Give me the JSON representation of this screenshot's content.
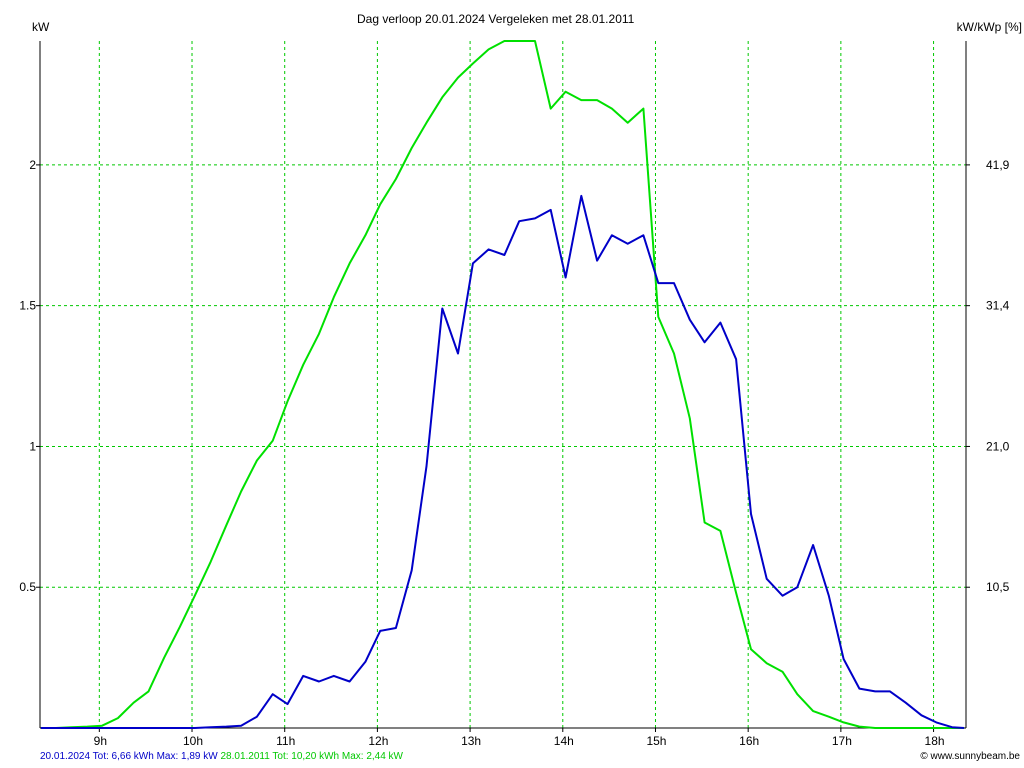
{
  "title": "Dag  verloop 20.01.2024   Vergeleken met 28.01.2011",
  "left_axis_unit": "kW",
  "right_axis_unit": "kW/kWp [%]",
  "footer": {
    "series1_summary": "20.01.2024 Tot: 6,66 kWh Max: 1,89 kW",
    "series2_summary": "28.01.2011 Tot: 10,20 kWh Max: 2,44 kW",
    "credit": "© www.sunnybeam.be"
  },
  "colors": {
    "series1": "#0000c8",
    "series2": "#00e000",
    "grid": "#00c800",
    "axis": "#000000"
  },
  "chart_data": {
    "type": "line",
    "grid": true,
    "xlim": [
      8.36,
      18.35
    ],
    "ylim": [
      0,
      2.44
    ],
    "x_ticks": [
      9,
      10,
      11,
      12,
      13,
      14,
      15,
      16,
      17,
      18
    ],
    "x_tick_labels": [
      "9h",
      "10h",
      "11h",
      "12h",
      "13h",
      "14h",
      "15h",
      "16h",
      "17h",
      "18h"
    ],
    "y_ticks": [
      0.5,
      1,
      1.5,
      2
    ],
    "y_tick_labels": [
      "0.5",
      "1",
      "1.5",
      "2"
    ],
    "y2_tick_labels": [
      "10,5",
      "21,0",
      "31,4",
      "41,9"
    ],
    "series": [
      {
        "name": "20.01.2024",
        "color": "#0000c8",
        "x": [
          8.37,
          8.53,
          8.7,
          8.87,
          9.03,
          9.2,
          9.37,
          9.53,
          9.7,
          9.87,
          10.03,
          10.2,
          10.37,
          10.53,
          10.7,
          10.87,
          11.03,
          11.2,
          11.37,
          11.53,
          11.7,
          11.87,
          12.03,
          12.2,
          12.37,
          12.53,
          12.7,
          12.87,
          13.03,
          13.2,
          13.37,
          13.53,
          13.7,
          13.87,
          14.03,
          14.2,
          14.37,
          14.53,
          14.7,
          14.87,
          15.03,
          15.2,
          15.37,
          15.53,
          15.7,
          15.87,
          16.03,
          16.2,
          16.37,
          16.53,
          16.7,
          16.87,
          17.03,
          17.2,
          17.37,
          17.53,
          17.7,
          17.87,
          18.03,
          18.2,
          18.33
        ],
        "values": [
          0,
          0,
          0,
          0,
          0,
          0,
          0,
          0,
          0,
          0,
          0,
          0.003,
          0.005,
          0.008,
          0.04,
          0.12,
          0.085,
          0.185,
          0.165,
          0.185,
          0.165,
          0.235,
          0.345,
          0.355,
          0.56,
          0.93,
          1.49,
          1.33,
          1.65,
          1.7,
          1.68,
          1.8,
          1.81,
          1.84,
          1.6,
          1.89,
          1.66,
          1.75,
          1.72,
          1.75,
          1.58,
          1.58,
          1.45,
          1.37,
          1.44,
          1.31,
          0.76,
          0.53,
          0.47,
          0.5,
          0.65,
          0.47,
          0.245,
          0.14,
          0.13,
          0.13,
          0.09,
          0.045,
          0.02,
          0.003,
          0
        ]
      },
      {
        "name": "28.01.2011",
        "color": "#00e000",
        "x": [
          8.37,
          8.53,
          8.7,
          8.87,
          9.03,
          9.2,
          9.37,
          9.53,
          9.7,
          9.87,
          10.03,
          10.2,
          10.37,
          10.53,
          10.7,
          10.87,
          11.03,
          11.2,
          11.37,
          11.53,
          11.7,
          11.87,
          12.03,
          12.2,
          12.37,
          12.53,
          12.7,
          12.87,
          13.03,
          13.2,
          13.37,
          13.53,
          13.7,
          13.87,
          14.03,
          14.2,
          14.37,
          14.53,
          14.7,
          14.87,
          15.03,
          15.2,
          15.37,
          15.53,
          15.7,
          15.87,
          16.03,
          16.2,
          16.37,
          16.53,
          16.7,
          16.87,
          17.03,
          17.2,
          17.37,
          17.53,
          17.7,
          17.87,
          18.03,
          18.2,
          18.33
        ],
        "values": [
          0,
          0,
          0.003,
          0.005,
          0.008,
          0.035,
          0.09,
          0.13,
          0.25,
          0.36,
          0.47,
          0.59,
          0.72,
          0.84,
          0.95,
          1.02,
          1.16,
          1.29,
          1.4,
          1.53,
          1.65,
          1.75,
          1.86,
          1.95,
          2.06,
          2.15,
          2.24,
          2.31,
          2.36,
          2.41,
          2.44,
          2.44,
          2.44,
          2.2,
          2.26,
          2.23,
          2.23,
          2.2,
          2.15,
          2.2,
          1.46,
          1.33,
          1.1,
          0.73,
          0.7,
          0.48,
          0.28,
          0.23,
          0.2,
          0.12,
          0.06,
          0.04,
          0.02,
          0.005,
          0,
          0,
          0,
          0,
          0,
          0,
          0
        ]
      }
    ]
  }
}
